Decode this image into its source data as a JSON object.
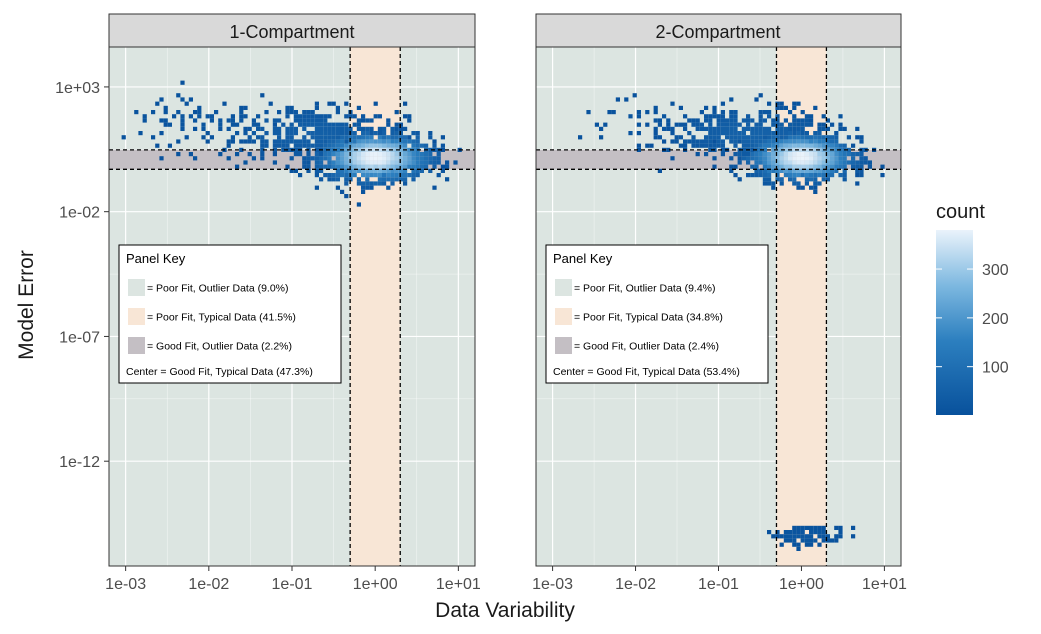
{
  "chart_data": {
    "type": "heatmap",
    "xlabel": "Data Variability",
    "ylabel": "Model Error",
    "x_scale": "log10",
    "y_scale": "log10",
    "xlim": [
      "1e-03",
      "1e+01"
    ],
    "ylim": [
      "1e-16",
      "1e+04.5"
    ],
    "x_ticks": [
      "1e-03",
      "1e-02",
      "1e-01",
      "1e+00",
      "1e+01"
    ],
    "y_ticks": [
      "1e+03",
      "1e-02",
      "1e-07",
      "1e-12"
    ],
    "grid": true,
    "colors": {
      "poor_outlier": "#dce5e1",
      "poor_typical": "#f8e6d6",
      "good_outlier": "#c4bfc4",
      "strip": "#d9d9d9",
      "grid": "#ffffff",
      "cmap_low": "#08519c",
      "cmap_mid": "#4a95cd",
      "cmap_high": "#eaf3fb"
    },
    "legend": {
      "title": "count",
      "placement": "right",
      "ticks": [
        100,
        200,
        300
      ],
      "min": 1,
      "max": 380
    },
    "panels": [
      {
        "title": "1-Compartment",
        "x_band": [
          0.5,
          2.0
        ],
        "y_band": [
          0.5,
          3.0
        ],
        "key": {
          "title": "Panel Key",
          "items": [
            {
              "color": "#dce5e1",
              "label": "= Poor Fit, Outlier Data (9.0%)"
            },
            {
              "color": "#f8e6d6",
              "label": "= Poor Fit, Typical Data (41.5%)"
            },
            {
              "color": "#c4bfc4",
              "label": "= Good Fit, Outlier Data (2.2%)"
            }
          ],
          "center": "Center = Good Fit, Typical Data (47.3%)"
        },
        "clusters": [
          {
            "x": 1.0,
            "y": 1.5,
            "sx": 0.32,
            "sy": 0.45,
            "peak": 380,
            "n": 1400
          },
          {
            "x": 0.18,
            "y": 12,
            "sx": 0.55,
            "sy": 0.6,
            "peak": 25,
            "n": 420
          },
          {
            "x": 0.01,
            "y": 60,
            "sx": 0.6,
            "sy": 0.55,
            "peak": 6,
            "n": 70
          }
        ]
      },
      {
        "title": "2-Compartment",
        "x_band": [
          0.5,
          2.0
        ],
        "y_band": [
          0.5,
          3.0
        ],
        "key": {
          "title": "Panel Key",
          "items": [
            {
              "color": "#dce5e1",
              "label": "= Poor Fit, Outlier Data (9.4%)"
            },
            {
              "color": "#f8e6d6",
              "label": "= Poor Fit, Typical Data (34.8%)"
            },
            {
              "color": "#c4bfc4",
              "label": "= Good Fit, Outlier Data (2.4%)"
            }
          ],
          "center": "Center = Good Fit, Typical Data (53.4%)"
        },
        "clusters": [
          {
            "x": 1.0,
            "y": 1.5,
            "sx": 0.3,
            "sy": 0.42,
            "peak": 380,
            "n": 1300
          },
          {
            "x": 0.25,
            "y": 12,
            "sx": 0.5,
            "sy": 0.55,
            "peak": 30,
            "n": 450
          },
          {
            "x": 0.02,
            "y": 40,
            "sx": 0.55,
            "sy": 0.55,
            "peak": 5,
            "n": 45
          },
          {
            "x": 1.2,
            "y": 1e-15,
            "sx": 0.22,
            "sy": 0.18,
            "peak": 8,
            "n": 110
          }
        ]
      }
    ]
  }
}
